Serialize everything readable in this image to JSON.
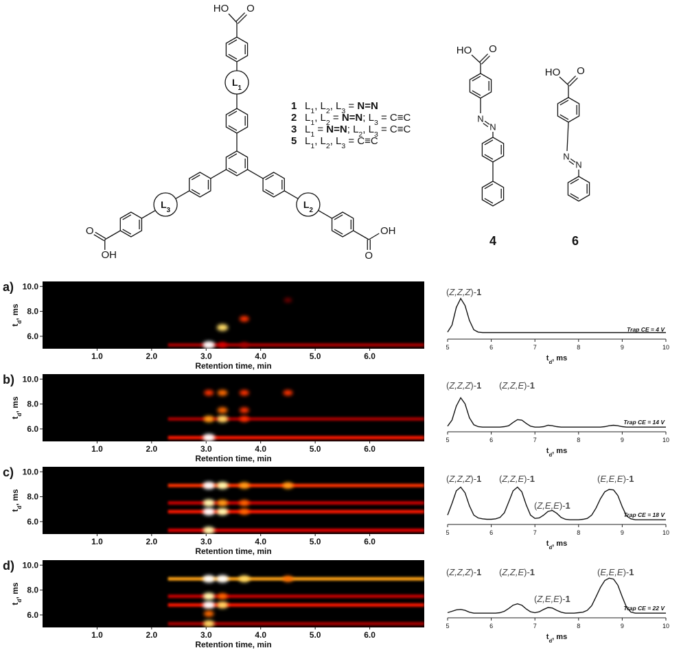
{
  "scheme": {
    "main": {
      "top_acid": [
        "HO",
        "O"
      ],
      "left_acid": [
        "O",
        "OH"
      ],
      "right_acid": [
        "OH",
        "O"
      ],
      "linkers": [
        [
          {
            "text": "L"
          },
          {
            "sub": "1"
          }
        ],
        [
          {
            "text": "L"
          },
          {
            "sub": "2"
          }
        ],
        [
          {
            "text": "L"
          },
          {
            "sub": "3"
          }
        ]
      ]
    },
    "key": [
      {
        "number": "1",
        "parts": [
          {
            "text": "L"
          },
          {
            "sub": "1"
          },
          {
            "text": ", L"
          },
          {
            "sub": "2"
          },
          {
            "text": ", L"
          },
          {
            "sub": "3"
          },
          {
            "text": " = "
          },
          {
            "bold": "N=N"
          }
        ]
      },
      {
        "number": "2",
        "parts": [
          {
            "text": "L"
          },
          {
            "sub": "1"
          },
          {
            "text": ", L"
          },
          {
            "sub": "2"
          },
          {
            "text": " = "
          },
          {
            "bold": "N=N"
          },
          {
            "text": "; L"
          },
          {
            "sub": "3"
          },
          {
            "text": " = C≡C"
          }
        ]
      },
      {
        "number": "3",
        "parts": [
          {
            "text": "L"
          },
          {
            "sub": "1"
          },
          {
            "text": " = "
          },
          {
            "bold": "N=N"
          },
          {
            "text": "; L"
          },
          {
            "sub": "2"
          },
          {
            "text": ", L"
          },
          {
            "sub": "3"
          },
          {
            "text": " = C≡C"
          }
        ]
      },
      {
        "number": "5",
        "parts": [
          {
            "text": "L"
          },
          {
            "sub": "1"
          },
          {
            "text": ", L"
          },
          {
            "sub": "2"
          },
          {
            "text": ", L"
          },
          {
            "sub": "3"
          },
          {
            "text": " = C≡C"
          }
        ]
      }
    ],
    "compound4": {
      "acid": [
        "HO",
        "O"
      ],
      "azo": [
        "N",
        "N"
      ],
      "label": "4"
    },
    "compound6": {
      "acid": [
        "HO",
        "O"
      ],
      "azo": [
        "N",
        "N"
      ],
      "label": "6"
    }
  },
  "chart_data": [
    {
      "type": "heatmap",
      "panel": "a)",
      "colormap": "hot",
      "ylabel": [
        {
          "text": "t"
        },
        {
          "sub": "d"
        },
        {
          "text": ", ms"
        }
      ],
      "xlabel": "Retention time, min",
      "xlim": [
        0,
        7
      ],
      "ylim": [
        5,
        10.4
      ],
      "xticks": [
        {
          "value": 1,
          "label": "1.0"
        },
        {
          "value": 2,
          "label": "2.0"
        },
        {
          "value": 3,
          "label": "3.0"
        },
        {
          "value": 4,
          "label": "4.0"
        },
        {
          "value": 5,
          "label": "5.0"
        },
        {
          "value": 6,
          "label": "6.0"
        }
      ],
      "yticks": [
        {
          "value": 6,
          "label": "6.0"
        },
        {
          "value": 8,
          "label": "8.0"
        },
        {
          "value": 10,
          "label": "10.0"
        }
      ],
      "spots": {
        "rt": [
          3.05,
          3.3,
          3.7,
          4.5,
          3.3,
          3.7
        ],
        "td": [
          5.3,
          6.7,
          7.4,
          8.9,
          5.3,
          5.3
        ],
        "intensity": [
          1,
          0.8,
          0.5,
          0.2,
          0.4,
          0.3
        ]
      },
      "bands": {
        "td": [
          5.3
        ],
        "start": [
          2.3
        ],
        "end": [
          7
        ],
        "intensity": [
          0.3
        ]
      }
    },
    {
      "type": "line",
      "color": "#111111",
      "xlabel": [
        {
          "text": "t"
        },
        {
          "sub": "d"
        },
        {
          "text": ", ms"
        }
      ],
      "xlim": [
        5,
        10
      ],
      "ylim": [
        0,
        100
      ],
      "xticks": [
        5,
        6,
        7,
        8,
        9,
        10
      ],
      "x": [
        5,
        5.1,
        5.2,
        5.3,
        5.4,
        5.5,
        5.6,
        5.7,
        5.8,
        5.9,
        6,
        6.1,
        6.2,
        6.3,
        6.4,
        6.5,
        6.6,
        6.7,
        6.8,
        6.9,
        7,
        7.1,
        7.2,
        7.3,
        7.4,
        7.5,
        7.6,
        7.7,
        7.8,
        7.9,
        8,
        8.1,
        8.2,
        8.3,
        8.4,
        8.5,
        8.6,
        8.7,
        8.8,
        8.9,
        9,
        9.1,
        9.2,
        9.3,
        9.4,
        9.5,
        9.6,
        9.7,
        9.8,
        9.9,
        10
      ],
      "values": [
        15,
        30,
        68,
        87,
        72,
        40,
        20,
        15,
        14,
        14,
        14,
        14,
        14,
        14,
        14,
        14,
        14,
        14,
        14,
        14,
        14,
        14,
        14,
        14,
        14,
        14,
        14,
        14,
        14,
        14,
        14,
        14,
        14,
        14,
        14,
        14,
        14,
        14,
        14,
        14,
        14,
        14,
        14,
        14,
        14,
        14,
        14,
        14,
        14,
        14,
        14
      ],
      "annotations": [
        [
          {
            "text": "("
          },
          {
            "italic": "Z,Z,Z"
          },
          {
            "text": ")-"
          },
          {
            "bold": "1"
          }
        ]
      ],
      "condition": "Trap CE = 4 V"
    },
    {
      "type": "heatmap",
      "panel": "b)",
      "colormap": "hot",
      "ylabel": [
        {
          "text": "t"
        },
        {
          "sub": "d"
        },
        {
          "text": ", ms"
        }
      ],
      "xlabel": "Retention time, min",
      "xlim": [
        0,
        7
      ],
      "ylim": [
        5,
        10.4
      ],
      "xticks": [
        {
          "value": 1,
          "label": "1.0"
        },
        {
          "value": 2,
          "label": "2.0"
        },
        {
          "value": 3,
          "label": "3.0"
        },
        {
          "value": 4,
          "label": "4.0"
        },
        {
          "value": 5,
          "label": "5.0"
        },
        {
          "value": 6,
          "label": "6.0"
        }
      ],
      "yticks": [
        {
          "value": 6,
          "label": "6.0"
        },
        {
          "value": 8,
          "label": "8.0"
        },
        {
          "value": 10,
          "label": "10.0"
        }
      ],
      "spots": {
        "rt": [
          3.05,
          3.05,
          3.3,
          3.05,
          3.3,
          3.7,
          4.5,
          3.3,
          3.7,
          3.7
        ],
        "td": [
          5.3,
          6.8,
          6.8,
          8.9,
          8.9,
          8.9,
          8.9,
          7.5,
          7.5,
          6.8
        ],
        "intensity": [
          1,
          0.7,
          0.8,
          0.5,
          0.6,
          0.5,
          0.5,
          0.6,
          0.5,
          0.5
        ]
      },
      "bands": {
        "td": [
          5.3,
          6.8
        ],
        "start": [
          2.3,
          2.3
        ],
        "end": [
          7,
          7
        ],
        "intensity": [
          0.45,
          0.3
        ]
      }
    },
    {
      "type": "line",
      "color": "#111111",
      "xlabel": [
        {
          "text": "t"
        },
        {
          "sub": "d"
        },
        {
          "text": ", ms"
        }
      ],
      "xlim": [
        5,
        10
      ],
      "ylim": [
        0,
        100
      ],
      "xticks": [
        5,
        6,
        7,
        8,
        9,
        10
      ],
      "x": [
        5,
        5.1,
        5.2,
        5.3,
        5.4,
        5.5,
        5.6,
        5.7,
        5.8,
        5.9,
        6,
        6.1,
        6.2,
        6.3,
        6.4,
        6.5,
        6.6,
        6.7,
        6.8,
        6.9,
        7,
        7.1,
        7.2,
        7.3,
        7.4,
        7.5,
        7.6,
        7.7,
        7.8,
        7.9,
        8,
        8.1,
        8.2,
        8.3,
        8.4,
        8.5,
        8.6,
        8.7,
        8.8,
        8.9,
        9,
        9.1,
        9.2,
        9.3,
        9.4,
        9.5,
        9.6,
        9.7,
        9.8,
        9.9,
        10
      ],
      "values": [
        12,
        25,
        55,
        73,
        60,
        30,
        15,
        11,
        10,
        10,
        10,
        10,
        10,
        11,
        13,
        20,
        26,
        25,
        18,
        12,
        10,
        10,
        11,
        14,
        13,
        11,
        10,
        10,
        10,
        10,
        10,
        10,
        10,
        10,
        10,
        10,
        11,
        13,
        14,
        13,
        11,
        10,
        10,
        10,
        10,
        10,
        10,
        10,
        10,
        10,
        10
      ],
      "annotations": [
        [
          {
            "text": "("
          },
          {
            "italic": "Z,Z,Z"
          },
          {
            "text": ")-"
          },
          {
            "bold": "1"
          }
        ],
        [
          {
            "text": "("
          },
          {
            "italic": "Z,Z,E"
          },
          {
            "text": ")-"
          },
          {
            "bold": "1"
          }
        ]
      ],
      "condition": "Trap CE = 14 V"
    },
    {
      "type": "heatmap",
      "panel": "c)",
      "colormap": "hot",
      "ylabel": [
        {
          "text": "t"
        },
        {
          "sub": "d"
        },
        {
          "text": ", ms"
        }
      ],
      "xlabel": "Retention time, min",
      "xlim": [
        0,
        7
      ],
      "ylim": [
        5,
        10.4
      ],
      "xticks": [
        {
          "value": 1,
          "label": "1.0"
        },
        {
          "value": 2,
          "label": "2.0"
        },
        {
          "value": 3,
          "label": "3.0"
        },
        {
          "value": 4,
          "label": "4.0"
        },
        {
          "value": 5,
          "label": "5.0"
        },
        {
          "value": 6,
          "label": "6.0"
        }
      ],
      "yticks": [
        {
          "value": 6,
          "label": "6.0"
        },
        {
          "value": 8,
          "label": "8.0"
        },
        {
          "value": 10,
          "label": "10.0"
        }
      ],
      "spots": {
        "rt": [
          3.05,
          3.05,
          3.3,
          3.7,
          3.05,
          3.3,
          3.7,
          3.05,
          3.3,
          3.7,
          4.5
        ],
        "td": [
          5.3,
          6.8,
          6.8,
          6.8,
          7.5,
          7.5,
          7.5,
          8.9,
          8.9,
          8.9,
          8.9
        ],
        "intensity": [
          0.9,
          1,
          0.9,
          0.6,
          0.9,
          0.7,
          0.6,
          1,
          0.9,
          0.7,
          0.7
        ]
      },
      "bands": {
        "td": [
          5.3,
          6.8,
          7.5,
          8.9
        ],
        "start": [
          2.3,
          2.3,
          2.3,
          2.3
        ],
        "end": [
          7,
          7,
          7,
          7
        ],
        "intensity": [
          0.4,
          0.45,
          0.35,
          0.5
        ]
      }
    },
    {
      "type": "line",
      "color": "#111111",
      "xlabel": [
        {
          "text": "t"
        },
        {
          "sub": "d"
        },
        {
          "text": ", ms"
        }
      ],
      "xlim": [
        5,
        10
      ],
      "ylim": [
        0,
        100
      ],
      "xticks": [
        5,
        6,
        7,
        8,
        9,
        10
      ],
      "x": [
        5,
        5.1,
        5.2,
        5.3,
        5.4,
        5.5,
        5.6,
        5.7,
        5.8,
        5.9,
        6,
        6.1,
        6.2,
        6.3,
        6.4,
        6.5,
        6.6,
        6.7,
        6.8,
        6.9,
        7,
        7.1,
        7.2,
        7.3,
        7.4,
        7.5,
        7.6,
        7.7,
        7.8,
        7.9,
        8,
        8.1,
        8.2,
        8.3,
        8.4,
        8.5,
        8.6,
        8.7,
        8.8,
        8.9,
        9,
        9.1,
        9.2,
        9.3,
        9.4,
        9.5,
        9.6,
        9.7,
        9.8,
        9.9,
        10
      ],
      "values": [
        20,
        45,
        72,
        80,
        68,
        40,
        20,
        14,
        12,
        11,
        11,
        12,
        15,
        25,
        48,
        72,
        80,
        70,
        42,
        20,
        13,
        14,
        20,
        28,
        30,
        24,
        15,
        11,
        10,
        10,
        10,
        11,
        13,
        20,
        35,
        55,
        70,
        75,
        74,
        62,
        38,
        18,
        12,
        10,
        10,
        10,
        10,
        10,
        10,
        10,
        10
      ],
      "annotations": [
        [
          {
            "text": "("
          },
          {
            "italic": "Z,Z,Z"
          },
          {
            "text": ")-"
          },
          {
            "bold": "1"
          }
        ],
        [
          {
            "text": "("
          },
          {
            "italic": "Z,Z,E"
          },
          {
            "text": ")-"
          },
          {
            "bold": "1"
          }
        ],
        [
          {
            "text": "("
          },
          {
            "italic": "Z,E,E"
          },
          {
            "text": ")-"
          },
          {
            "bold": "1"
          }
        ],
        [
          {
            "text": "("
          },
          {
            "italic": "E,E,E"
          },
          {
            "text": ")-"
          },
          {
            "bold": "1"
          }
        ]
      ],
      "condition": "Trap CE = 18 V"
    },
    {
      "type": "heatmap",
      "panel": "d)",
      "colormap": "hot",
      "ylabel": [
        {
          "text": "t"
        },
        {
          "sub": "d"
        },
        {
          "text": ", ms"
        }
      ],
      "xlabel": "Retention time, min",
      "xlim": [
        0,
        7
      ],
      "ylim": [
        5,
        10.4
      ],
      "xticks": [
        {
          "value": 1,
          "label": "1.0"
        },
        {
          "value": 2,
          "label": "2.0"
        },
        {
          "value": 3,
          "label": "3.0"
        },
        {
          "value": 4,
          "label": "4.0"
        },
        {
          "value": 5,
          "label": "5.0"
        },
        {
          "value": 6,
          "label": "6.0"
        }
      ],
      "yticks": [
        {
          "value": 6,
          "label": "6.0"
        },
        {
          "value": 8,
          "label": "8.0"
        },
        {
          "value": 10,
          "label": "10.0"
        }
      ],
      "spots": {
        "rt": [
          3.05,
          3.05,
          3.3,
          3.05,
          3.3,
          3.05,
          3.3,
          3.7,
          4.5,
          3.05
        ],
        "td": [
          5.3,
          6.8,
          6.8,
          7.5,
          7.5,
          8.9,
          8.9,
          8.9,
          8.9,
          6.1
        ],
        "intensity": [
          0.8,
          1,
          0.8,
          0.9,
          0.6,
          1,
          1,
          0.8,
          0.6,
          0.6
        ]
      },
      "bands": {
        "td": [
          5.3,
          6.8,
          7.5,
          8.9
        ],
        "start": [
          2.3,
          2.3,
          2.3,
          2.3
        ],
        "end": [
          7,
          7,
          7,
          7
        ],
        "intensity": [
          0.3,
          0.45,
          0.35,
          0.7
        ]
      }
    },
    {
      "type": "line",
      "color": "#111111",
      "xlabel": [
        {
          "text": "t"
        },
        {
          "sub": "d"
        },
        {
          "text": ", ms"
        }
      ],
      "xlim": [
        5,
        10
      ],
      "ylim": [
        0,
        100
      ],
      "xticks": [
        5,
        6,
        7,
        8,
        9,
        10
      ],
      "x": [
        5,
        5.1,
        5.2,
        5.3,
        5.4,
        5.5,
        5.6,
        5.7,
        5.8,
        5.9,
        6,
        6.1,
        6.2,
        6.3,
        6.4,
        6.5,
        6.6,
        6.7,
        6.8,
        6.9,
        7,
        7.1,
        7.2,
        7.3,
        7.4,
        7.5,
        7.6,
        7.7,
        7.8,
        7.9,
        8,
        8.1,
        8.2,
        8.3,
        8.4,
        8.5,
        8.6,
        8.7,
        8.8,
        8.9,
        9,
        9.1,
        9.2,
        9.3,
        9.4,
        9.5,
        9.6,
        9.7,
        9.8,
        9.9,
        10
      ],
      "values": [
        11,
        14,
        17,
        18,
        16,
        12,
        10,
        10,
        10,
        10,
        10,
        10,
        11,
        14,
        20,
        27,
        30,
        27,
        19,
        13,
        11,
        13,
        18,
        22,
        21,
        16,
        12,
        10,
        10,
        10,
        11,
        12,
        16,
        26,
        45,
        65,
        80,
        85,
        83,
        70,
        45,
        22,
        12,
        10,
        10,
        10,
        10,
        10,
        10,
        10,
        10
      ],
      "annotations": [
        [
          {
            "text": "("
          },
          {
            "italic": "Z,Z,Z"
          },
          {
            "text": ")-"
          },
          {
            "bold": "1"
          }
        ],
        [
          {
            "text": "("
          },
          {
            "italic": "Z,Z,E"
          },
          {
            "text": ")-"
          },
          {
            "bold": "1"
          }
        ],
        [
          {
            "text": "("
          },
          {
            "italic": "Z,E,E"
          },
          {
            "text": ")-"
          },
          {
            "bold": "1"
          }
        ],
        [
          {
            "text": "("
          },
          {
            "italic": "E,E,E"
          },
          {
            "text": ")-"
          },
          {
            "bold": "1"
          }
        ]
      ],
      "condition": "Trap CE = 22 V"
    }
  ]
}
